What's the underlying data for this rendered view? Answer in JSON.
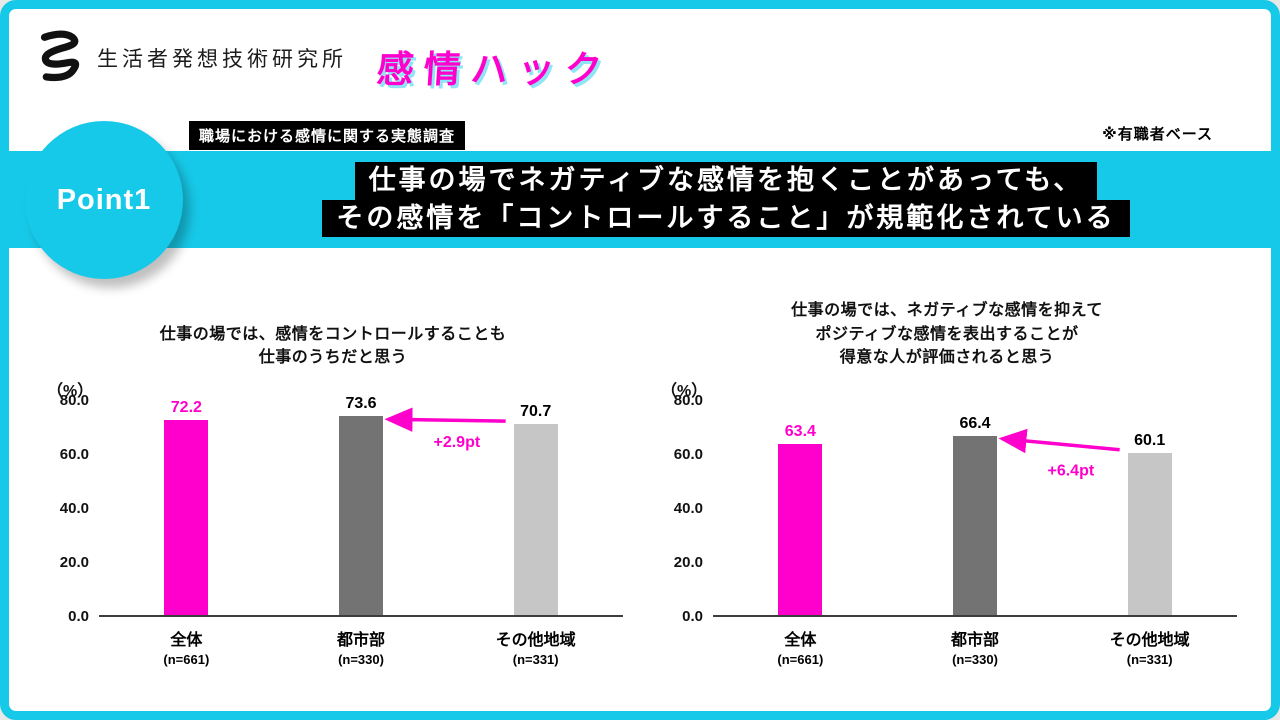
{
  "colors": {
    "cyan": "#17c9e8",
    "magenta": "#ff00cc",
    "dark_gray": "#737373",
    "light_gray": "#c6c6c6"
  },
  "header": {
    "institute_name": "生活者発想技術研究所",
    "brand": "感情ハック",
    "survey_title": "職場における感情に関する実態調査",
    "note": "※有職者ベース"
  },
  "banner": {
    "point_label": "Point1",
    "headline_line1": "仕事の場でネガティブな感情を抱くことがあっても、",
    "headline_line2": "その感情を「コントロールすること」が規範化されている"
  },
  "chart_data": [
    {
      "type": "bar",
      "title_lines": [
        "仕事の場では、感情をコントロールすることも",
        "仕事のうちだと思う"
      ],
      "unit": "（%）",
      "categories": [
        "全体",
        "都市部",
        "その他地域"
      ],
      "sample_sizes": [
        "(n=661)",
        "(n=330)",
        "(n=331)"
      ],
      "values": [
        72.2,
        73.6,
        70.7
      ],
      "bar_colors": [
        "#ff00cc",
        "#737373",
        "#c6c6c6"
      ],
      "value_label_colors": [
        "#ff00cc",
        "#000000",
        "#000000"
      ],
      "ylim": [
        0,
        80
      ],
      "yticks": [
        0,
        20,
        40,
        60,
        80
      ],
      "annotation": {
        "text": "+2.9pt",
        "from_category": "その他地域",
        "to_category": "都市部"
      }
    },
    {
      "type": "bar",
      "title_lines": [
        "仕事の場では、ネガティブな感情を抑えて",
        "ポジティブな感情を表出することが",
        "得意な人が評価されると思う"
      ],
      "unit": "（%）",
      "categories": [
        "全体",
        "都市部",
        "その他地域"
      ],
      "sample_sizes": [
        "(n=661)",
        "(n=330)",
        "(n=331)"
      ],
      "values": [
        63.4,
        66.4,
        60.1
      ],
      "bar_colors": [
        "#ff00cc",
        "#737373",
        "#c6c6c6"
      ],
      "value_label_colors": [
        "#ff00cc",
        "#000000",
        "#000000"
      ],
      "ylim": [
        0,
        80
      ],
      "yticks": [
        0,
        20,
        40,
        60,
        80
      ],
      "annotation": {
        "text": "+6.4pt",
        "from_category": "その他地域",
        "to_category": "都市部"
      }
    }
  ]
}
